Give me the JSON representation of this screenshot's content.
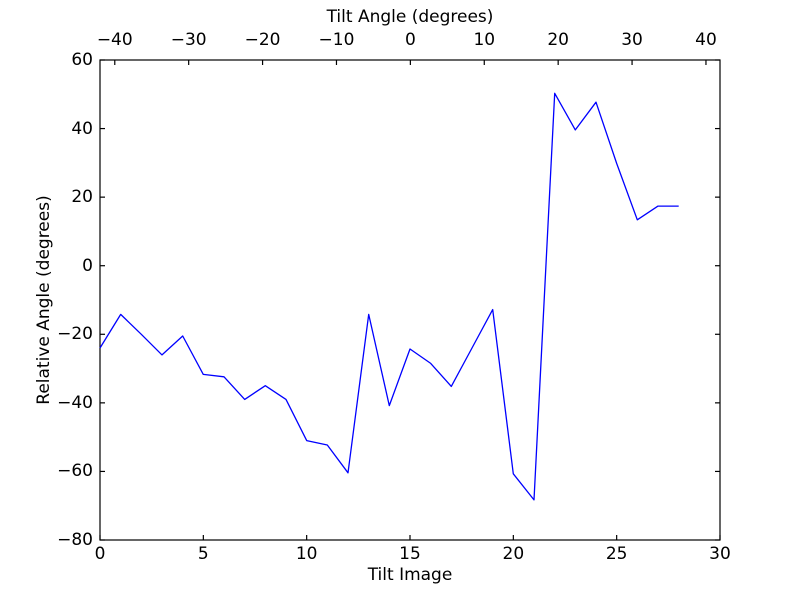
{
  "figure": {
    "background": "#ffffff",
    "axis_color": "#000000",
    "line_color": "#0000ff"
  },
  "chart_data": {
    "type": "line",
    "top_xlabel": "Tilt Angle (degrees)",
    "xlabel": "Tilt Image",
    "ylabel": "Relative Angle (degrees)",
    "grid": false,
    "legend": null,
    "xlim": [
      0,
      30
    ],
    "ylim": [
      -80,
      60
    ],
    "top_xlim": [
      -42.0,
      41.9
    ],
    "xticks": [
      0,
      5,
      10,
      15,
      20,
      25,
      30
    ],
    "yticks": [
      60,
      40,
      20,
      0,
      -20,
      -40,
      -60,
      -80
    ],
    "top_xticks": [
      -40,
      -30,
      -20,
      -10,
      0,
      10,
      20,
      30,
      40
    ],
    "series": [
      {
        "name": "relative-angle",
        "color": "#0000ff",
        "x": [
          0,
          1,
          2,
          3,
          4,
          5,
          6,
          7,
          8,
          9,
          10,
          11,
          12,
          13,
          14,
          15,
          16,
          17,
          18,
          19,
          20,
          21,
          22,
          23,
          24,
          25,
          26,
          27,
          28
        ],
        "y": [
          -24.0,
          -14.2,
          -20.0,
          -26.0,
          -20.5,
          -31.7,
          -32.4,
          -39.0,
          -35.0,
          -39.0,
          -51.0,
          -52.3,
          -60.4,
          -14.2,
          -40.8,
          -24.3,
          -28.5,
          -35.2,
          -24.0,
          -12.8,
          -60.7,
          -68.3,
          50.3,
          39.6,
          47.7,
          29.8,
          13.4,
          17.4,
          17.4
        ]
      }
    ]
  }
}
